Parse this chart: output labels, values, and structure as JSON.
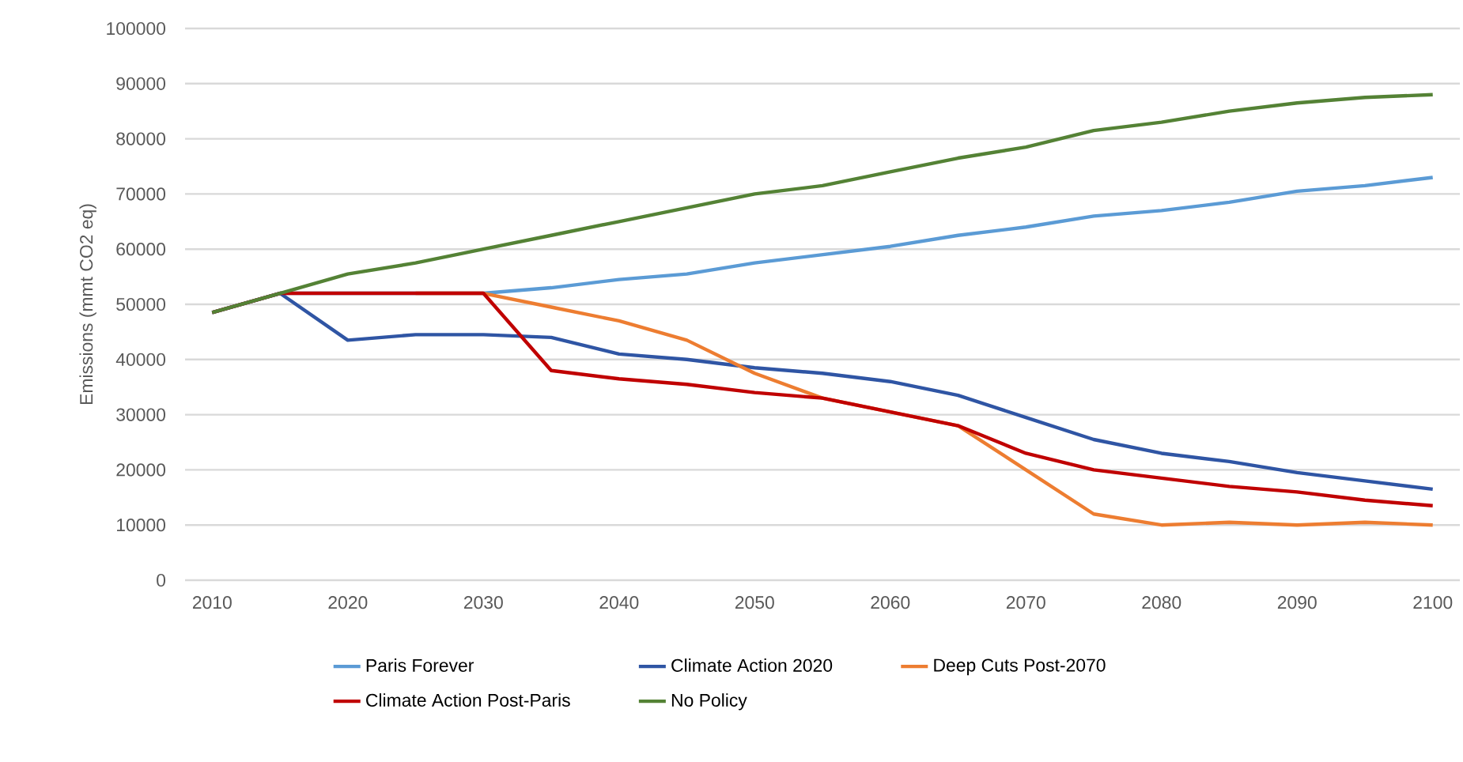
{
  "chart_data": {
    "type": "line",
    "ylabel": "Emissions (mmt CO2 eq)",
    "x": [
      2010,
      2015,
      2020,
      2025,
      2030,
      2035,
      2040,
      2045,
      2050,
      2055,
      2060,
      2065,
      2070,
      2075,
      2080,
      2085,
      2090,
      2095,
      2100
    ],
    "series": [
      {
        "name": "Paris Forever",
        "color": "#5b9bd5",
        "values": [
          48500,
          52000,
          null,
          null,
          52000,
          53000,
          54500,
          55500,
          57500,
          59000,
          60500,
          62500,
          64000,
          66000,
          67000,
          68500,
          70500,
          71500,
          73000
        ]
      },
      {
        "name": "Climate Action 2020",
        "color": "#2f55a4",
        "values": [
          48500,
          52000,
          43500,
          44500,
          44500,
          44000,
          41000,
          40000,
          38500,
          37500,
          36000,
          33500,
          29500,
          25500,
          23000,
          21500,
          19500,
          18000,
          16500
        ]
      },
      {
        "name": "Deep Cuts Post-2070",
        "color": "#ed7d31",
        "values": [
          null,
          null,
          null,
          52000,
          52000,
          49500,
          47000,
          43500,
          37500,
          33000,
          30500,
          28000,
          20000,
          12000,
          10000,
          10500,
          10000,
          10500,
          10000
        ]
      },
      {
        "name": "Climate Action Post-Paris",
        "color": "#c00000",
        "values": [
          48500,
          52000,
          52000,
          52000,
          52000,
          38000,
          36500,
          35500,
          34000,
          33000,
          30500,
          28000,
          23000,
          20000,
          18500,
          17000,
          16000,
          14500,
          13500
        ]
      },
      {
        "name": "No Policy",
        "color": "#548235",
        "values": [
          48500,
          52000,
          55500,
          57500,
          60000,
          62500,
          65000,
          67500,
          70000,
          71500,
          74000,
          76500,
          78500,
          81500,
          83000,
          85000,
          86500,
          87500,
          88000
        ]
      }
    ],
    "xlim": [
      2008,
      2102
    ],
    "ylim": [
      0,
      100000
    ],
    "xticks": [
      2010,
      2020,
      2030,
      2040,
      2050,
      2060,
      2070,
      2080,
      2090,
      2100
    ],
    "yticks": [
      0,
      10000,
      20000,
      30000,
      40000,
      50000,
      60000,
      70000,
      80000,
      90000,
      100000
    ],
    "grid": "y",
    "legend": "bottom",
    "marker": "none",
    "line_style": "solid"
  }
}
